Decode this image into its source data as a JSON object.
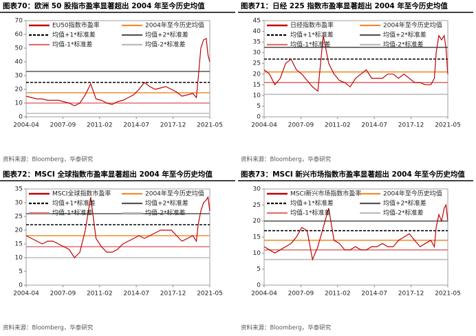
{
  "chart_data": [
    {
      "type": "line",
      "title": "图表70：欧洲 50 股指市盈率显著超出 2004 年至今历史均值",
      "source": "资料来源：Bloomberg，华泰研究",
      "x": [
        "2004-04",
        "2004-10",
        "2005-04",
        "2005-10",
        "2006-04",
        "2006-10",
        "2007-04",
        "2007-10",
        "2008-04",
        "2008-10",
        "2009-04",
        "2009-10",
        "2010-04",
        "2010-10",
        "2011-04",
        "2011-10",
        "2012-04",
        "2012-10",
        "2013-04",
        "2013-10",
        "2014-04",
        "2014-10",
        "2015-04",
        "2015-10",
        "2016-04",
        "2016-10",
        "2017-04",
        "2017-10",
        "2018-04",
        "2018-10",
        "2019-04",
        "2019-10",
        "2020-02",
        "2020-04",
        "2020-07",
        "2020-10",
        "2021-01",
        "2021-03",
        "2021-05"
      ],
      "xlim": [
        "2004-04",
        "2021-05"
      ],
      "xticks": [
        "2004-04",
        "2007-09",
        "2011-02",
        "2014-07",
        "2017-12",
        "2021-05"
      ],
      "ylim": [
        0,
        70
      ],
      "yticks": [
        0,
        10,
        20,
        30,
        40,
        50,
        60,
        70
      ],
      "series": [
        {
          "name": "EU50指数市盈率",
          "color": "#c00000",
          "values": [
            15,
            14,
            13,
            13,
            12,
            12,
            12,
            11,
            10,
            8,
            10,
            16,
            24,
            13,
            12,
            10,
            9,
            11,
            12,
            14,
            16,
            20,
            25,
            22,
            20,
            21,
            22,
            20,
            18,
            15,
            16,
            17,
            14,
            28,
            50,
            56,
            57,
            45,
            40
          ]
        }
      ],
      "reference_lines": [
        {
          "name": "2004年至今历史均值",
          "color": "#f08c30",
          "value": 17.5,
          "style": "solid"
        },
        {
          "name": "均值+1*标准差",
          "color": "#000000",
          "value": 25,
          "style": "dashed"
        },
        {
          "name": "均值+2*标准差",
          "color": "#555555",
          "value": 33,
          "style": "solid"
        },
        {
          "name": "均值-1*标准差",
          "color": "#e07070",
          "value": 10,
          "style": "solid"
        },
        {
          "name": "均值-2*标准差",
          "color": "#bbbbbb",
          "value": 2.5,
          "style": "solid"
        }
      ]
    },
    {
      "type": "line",
      "title": "图表71：日经 225 指数市盈率显著超出 2004 年至今历史均值",
      "source": "资料来源：Bloomberg，华泰研究",
      "x": [
        "2004-04",
        "2004-10",
        "2005-04",
        "2005-10",
        "2006-04",
        "2006-10",
        "2007-04",
        "2007-10",
        "2008-04",
        "2008-10",
        "2009-04",
        "2009-10",
        "2010-04",
        "2010-10",
        "2011-04",
        "2011-10",
        "2012-04",
        "2012-10",
        "2013-04",
        "2013-10",
        "2014-04",
        "2014-10",
        "2015-04",
        "2015-10",
        "2016-04",
        "2016-10",
        "2017-04",
        "2017-10",
        "2018-04",
        "2018-10",
        "2019-04",
        "2019-10",
        "2020-02",
        "2020-04",
        "2020-07",
        "2020-10",
        "2021-01",
        "2021-03",
        "2021-05"
      ],
      "xlim": [
        "2004-04",
        "2021-05"
      ],
      "xticks": [
        "2004-04",
        "2007-09",
        "2011-02",
        "2014-07",
        "2017-12",
        "2021-05"
      ],
      "ylim": [
        0,
        45
      ],
      "yticks": [
        0,
        5,
        10,
        15,
        20,
        25,
        30,
        35,
        40,
        45
      ],
      "series": [
        {
          "name": "日经指数市盈率",
          "color": "#c00000",
          "values": [
            22,
            20,
            15,
            18,
            25,
            27,
            22,
            20,
            17,
            14,
            12,
            38,
            25,
            20,
            17,
            16,
            14,
            18,
            20,
            22,
            18,
            18,
            18,
            20,
            20,
            18,
            20,
            18,
            16,
            16,
            15,
            15,
            18,
            30,
            38,
            36,
            38,
            32,
            20
          ]
        }
      ],
      "reference_lines": [
        {
          "name": "2004年至今历史均值",
          "color": "#f08c30",
          "value": 21,
          "style": "solid"
        },
        {
          "name": "均值+1*标准差",
          "color": "#000000",
          "value": 27,
          "style": "dashed"
        },
        {
          "name": "均值+2*标准差",
          "color": "#555555",
          "value": 32.5,
          "style": "solid"
        },
        {
          "name": "均值-1*标准差",
          "color": "#e07070",
          "value": 16,
          "style": "solid"
        },
        {
          "name": "均值-2*标准差",
          "color": "#bbbbbb",
          "value": 10.5,
          "style": "solid"
        }
      ]
    },
    {
      "type": "line",
      "title": "图表72：MSCI 全球指数市盈率显著超出 2004 年至今历史均值",
      "source": "资料来源：Bloomberg，华泰研究",
      "x": [
        "2004-04",
        "2004-10",
        "2005-04",
        "2005-10",
        "2006-04",
        "2006-10",
        "2007-04",
        "2007-10",
        "2008-04",
        "2008-10",
        "2009-04",
        "2009-10",
        "2010-04",
        "2010-10",
        "2011-04",
        "2011-10",
        "2012-04",
        "2012-10",
        "2013-04",
        "2013-10",
        "2014-04",
        "2014-10",
        "2015-04",
        "2015-10",
        "2016-04",
        "2016-10",
        "2017-04",
        "2017-10",
        "2018-04",
        "2018-10",
        "2019-04",
        "2019-10",
        "2020-02",
        "2020-04",
        "2020-07",
        "2020-10",
        "2021-01",
        "2021-03",
        "2021-05"
      ],
      "xlim": [
        "2004-04",
        "2021-05"
      ],
      "xticks": [
        "2004-04",
        "2007-09",
        "2011-02",
        "2014-07",
        "2017-12",
        "2021-05"
      ],
      "ylim": [
        0,
        35
      ],
      "yticks": [
        0,
        5,
        10,
        15,
        20,
        25,
        30,
        35
      ],
      "series": [
        {
          "name": "MSCI全球指数市盈率",
          "color": "#c00000",
          "values": [
            18,
            17,
            16,
            15,
            16,
            16,
            15,
            14,
            13,
            10,
            12,
            20,
            32,
            17,
            14,
            12,
            12,
            13,
            15,
            16,
            17,
            18,
            17,
            18,
            19,
            20,
            20,
            20,
            18,
            16,
            17,
            18,
            16,
            22,
            27,
            30,
            31,
            32,
            27
          ]
        }
      ],
      "reference_lines": [
        {
          "name": "2004年至今历史均值",
          "color": "#f08c30",
          "value": 18,
          "style": "solid"
        },
        {
          "name": "均值+1*标准差",
          "color": "#000000",
          "value": 22,
          "style": "dashed"
        },
        {
          "name": "均值+2*标准差",
          "color": "#555555",
          "value": 26,
          "style": "solid"
        },
        {
          "name": "均值-1*标准差",
          "color": "#e07070",
          "value": 14,
          "style": "solid"
        },
        {
          "name": "均值-2*标准差",
          "color": "#bbbbbb",
          "value": 10,
          "style": "solid"
        }
      ]
    },
    {
      "type": "line",
      "title": "图表73：MSCI 新兴市场指数市盈率显著超出 2004 年至今历史均值",
      "source": "资料来源：Bloomberg，华泰研究",
      "x": [
        "2004-04",
        "2004-10",
        "2005-04",
        "2005-10",
        "2006-04",
        "2006-10",
        "2007-04",
        "2007-10",
        "2008-04",
        "2008-10",
        "2009-04",
        "2009-10",
        "2010-04",
        "2010-10",
        "2011-04",
        "2011-10",
        "2012-04",
        "2012-10",
        "2013-04",
        "2013-10",
        "2014-04",
        "2014-10",
        "2015-04",
        "2015-10",
        "2016-04",
        "2016-10",
        "2017-04",
        "2017-10",
        "2018-04",
        "2018-10",
        "2019-04",
        "2019-10",
        "2020-02",
        "2020-04",
        "2020-07",
        "2020-10",
        "2021-01",
        "2021-03",
        "2021-05"
      ],
      "xlim": [
        "2004-04",
        "2021-05"
      ],
      "xticks": [
        "2004-04",
        "2007-09",
        "2011-02",
        "2014-07",
        "2017-12",
        "2021-05"
      ],
      "ylim": [
        0,
        30
      ],
      "yticks": [
        0,
        5,
        10,
        15,
        20,
        25,
        30
      ],
      "series": [
        {
          "name": "MSCI新兴市场指数市盈率",
          "color": "#c00000",
          "values": [
            12,
            11,
            10,
            11,
            12,
            13,
            15,
            18,
            17,
            8,
            12,
            18,
            24,
            14,
            13,
            11,
            11,
            12,
            11,
            11,
            12,
            12,
            13,
            12,
            12,
            14,
            15,
            16,
            14,
            12,
            13,
            14,
            12,
            18,
            22,
            20,
            24,
            25,
            20
          ]
        }
      ],
      "reference_lines": [
        {
          "name": "2004年至今历史均值",
          "color": "#f08c30",
          "value": 14,
          "style": "solid"
        },
        {
          "name": "均值+1*标准差",
          "color": "#000000",
          "value": 17,
          "style": "dashed"
        },
        {
          "name": "均值+2*标准差",
          "color": "#555555",
          "value": 20,
          "style": "solid"
        },
        {
          "name": "均值-1*标准差",
          "color": "#e07070",
          "value": 11,
          "style": "solid"
        },
        {
          "name": "均值-2*标准差",
          "color": "#bbbbbb",
          "value": 8,
          "style": "solid"
        }
      ]
    }
  ]
}
